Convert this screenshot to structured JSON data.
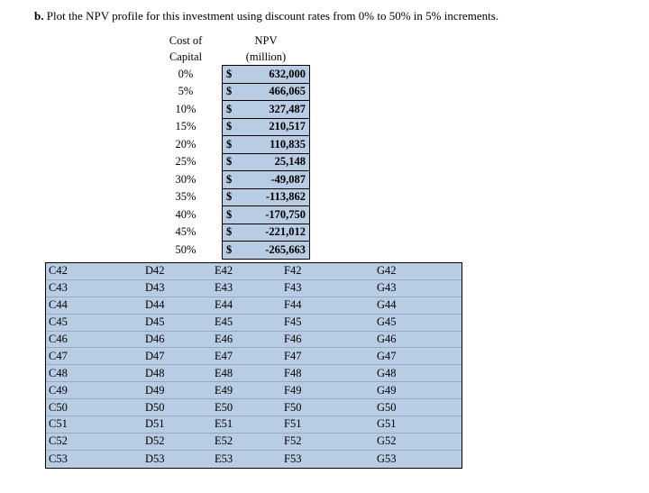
{
  "page": {
    "title_prefix": "b.",
    "title_text": " Plot the NPV profile for this investment using discount rates from 0% to 50% in 5% increments."
  },
  "npv_table": {
    "header": {
      "col1_line1": "Cost of",
      "col1_line2": "Capital",
      "col2_line1": "NPV",
      "col2_line2": "(million)"
    },
    "currency_symbol": "$",
    "rows": [
      {
        "rate": "0%",
        "value": "632,000"
      },
      {
        "rate": "5%",
        "value": "466,065"
      },
      {
        "rate": "10%",
        "value": "327,487"
      },
      {
        "rate": "15%",
        "value": "210,517"
      },
      {
        "rate": "20%",
        "value": "110,835"
      },
      {
        "rate": "25%",
        "value": "25,148"
      },
      {
        "rate": "30%",
        "value": "-49,087"
      },
      {
        "rate": "35%",
        "value": "-113,862"
      },
      {
        "rate": "40%",
        "value": "-170,750"
      },
      {
        "rate": "45%",
        "value": "-221,012"
      },
      {
        "rate": "50%",
        "value": "-265,663"
      }
    ]
  },
  "cell_grid": {
    "rows": [
      [
        "C42",
        "D42",
        "E42",
        "F42",
        "G42"
      ],
      [
        "C43",
        "D43",
        "E43",
        "F43",
        "G43"
      ],
      [
        "C44",
        "D44",
        "E44",
        "F44",
        "G44"
      ],
      [
        "C45",
        "D45",
        "E45",
        "F45",
        "G45"
      ],
      [
        "C46",
        "D46",
        "E46",
        "F46",
        "G46"
      ],
      [
        "C47",
        "D47",
        "E47",
        "F47",
        "G47"
      ],
      [
        "C48",
        "D48",
        "E48",
        "F48",
        "G48"
      ],
      [
        "C49",
        "D49",
        "E49",
        "F49",
        "G49"
      ],
      [
        "C50",
        "D50",
        "E50",
        "F50",
        "G50"
      ],
      [
        "C51",
        "D51",
        "E51",
        "F51",
        "G51"
      ],
      [
        "C52",
        "D52",
        "E52",
        "F52",
        "G52"
      ],
      [
        "C53",
        "D53",
        "E53",
        "F53",
        "G53"
      ]
    ]
  },
  "colors": {
    "cell_fill": "#b8cce4",
    "border": "#000000",
    "background": "#ffffff"
  }
}
